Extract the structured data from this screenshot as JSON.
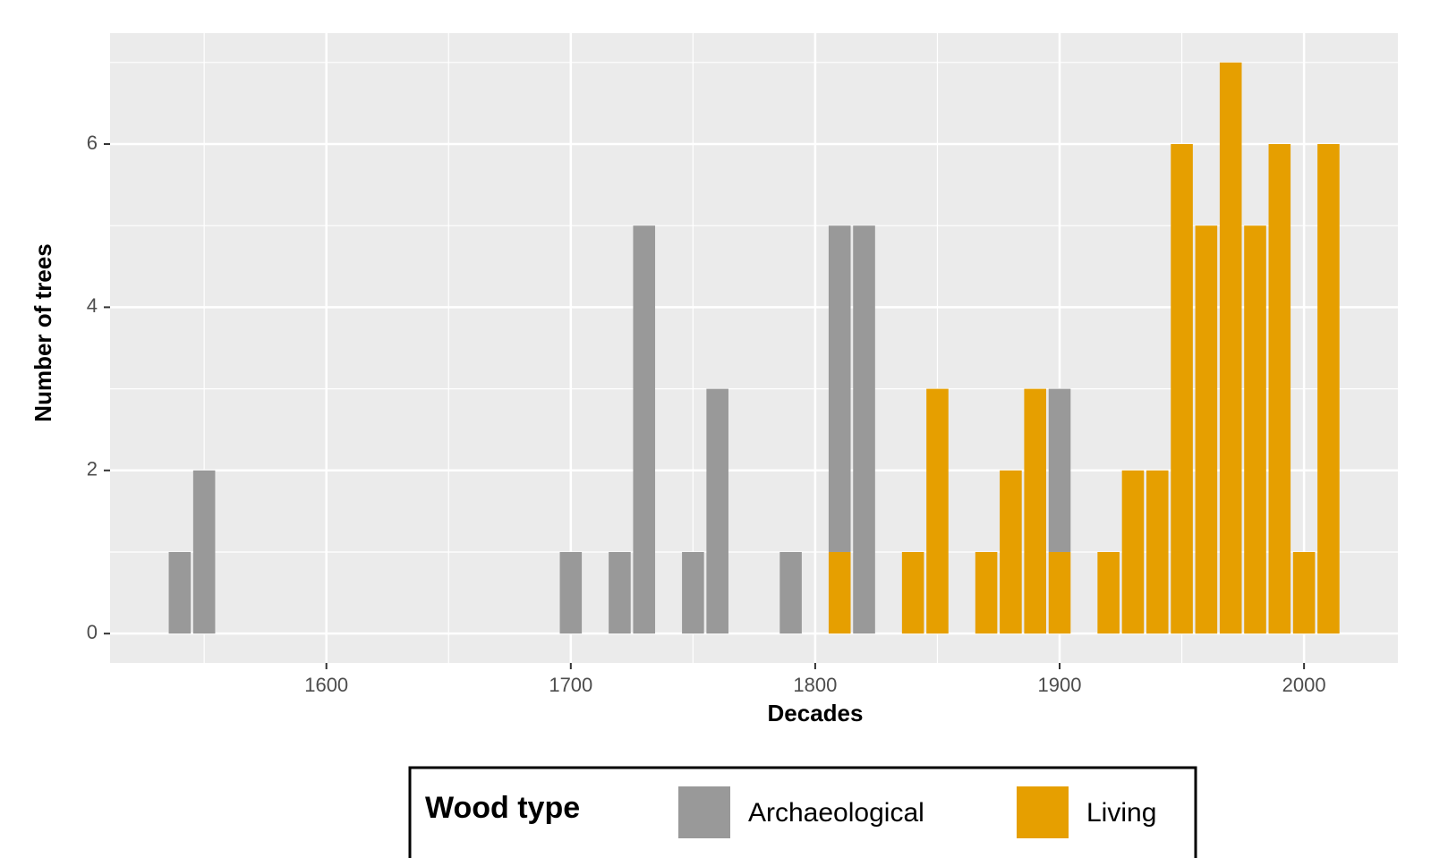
{
  "chart_data": {
    "type": "bar",
    "stacked": true,
    "x_label": "Decades",
    "y_label": "Number of trees",
    "x": [
      1540,
      1550,
      1700,
      1720,
      1730,
      1750,
      1760,
      1790,
      1810,
      1820,
      1840,
      1850,
      1870,
      1880,
      1890,
      1900,
      1920,
      1930,
      1940,
      1950,
      1960,
      1970,
      1980,
      1990,
      2000,
      2010
    ],
    "series": [
      {
        "name": "Living",
        "color": "#e69f00",
        "values": [
          0,
          0,
          0,
          0,
          0,
          0,
          0,
          0,
          1,
          0,
          1,
          3,
          1,
          2,
          3,
          1,
          1,
          2,
          2,
          6,
          5,
          7,
          5,
          6,
          1,
          6
        ]
      },
      {
        "name": "Archaeological",
        "color": "#999999",
        "values": [
          1,
          2,
          1,
          1,
          5,
          1,
          3,
          1,
          4,
          5,
          0,
          0,
          0,
          0,
          0,
          2,
          0,
          0,
          0,
          0,
          0,
          0,
          0,
          0,
          0,
          0
        ]
      }
    ],
    "legend_title": "Wood type",
    "legend_order": [
      "Archaeological",
      "Living"
    ],
    "xlim": [
      1511.5,
      2038.4
    ],
    "xticks": [
      1600,
      1700,
      1800,
      1900,
      2000
    ],
    "ylim": [
      -0.36,
      7.36
    ],
    "yticks": [
      0,
      2,
      4,
      6
    ],
    "grid": true,
    "legend_position": "bottom"
  }
}
